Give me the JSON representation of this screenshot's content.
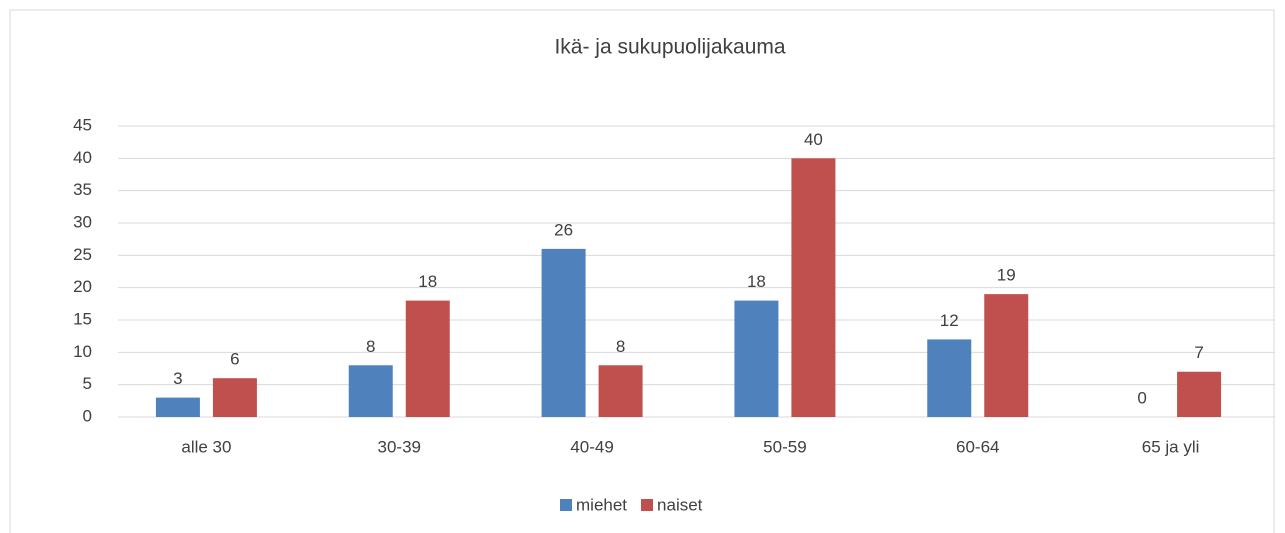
{
  "chart_data": {
    "type": "bar",
    "title": "Ikä- ja sukupuolijakauma",
    "categories": [
      "alle 30",
      "30-39",
      "40-49",
      "50-59",
      "60-64",
      "65 ja yli"
    ],
    "series": [
      {
        "name": "miehet",
        "color": "#4f81bd",
        "values": [
          3,
          8,
          26,
          18,
          12,
          0
        ]
      },
      {
        "name": "naiset",
        "color": "#c0504d",
        "values": [
          6,
          18,
          8,
          40,
          19,
          7
        ]
      }
    ],
    "ylim": [
      0,
      45
    ],
    "yticks": [
      0,
      5,
      10,
      15,
      20,
      25,
      30,
      35,
      40,
      45
    ],
    "grid": true,
    "legend": "bottom"
  }
}
